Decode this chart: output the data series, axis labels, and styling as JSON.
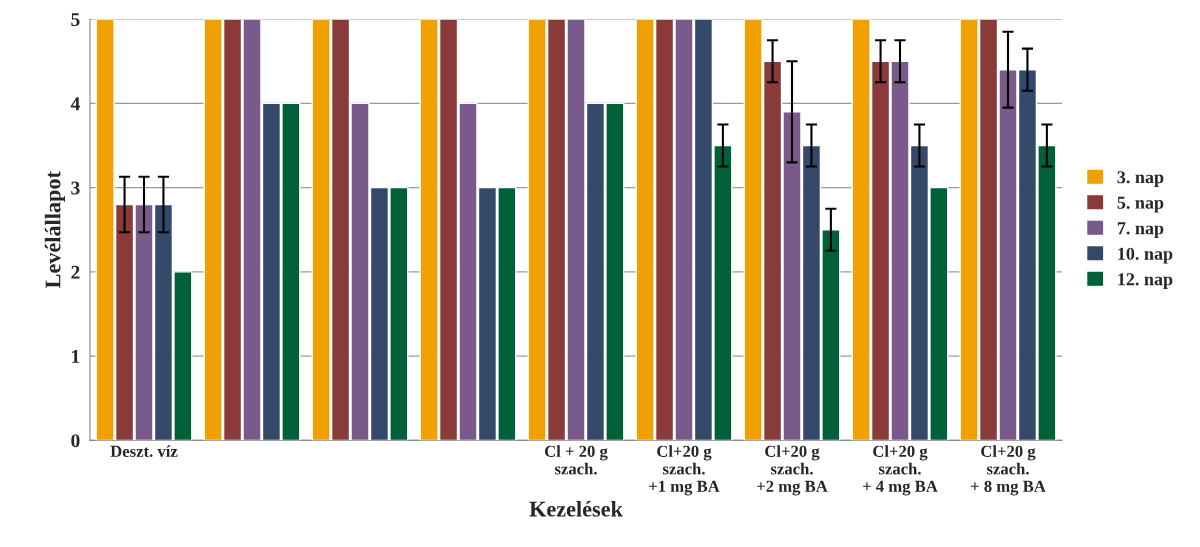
{
  "chart_data": {
    "type": "bar",
    "xlabel": "Kezelések",
    "ylabel": "Levélállapot",
    "categories": [
      "Deszt. víz",
      null,
      null,
      null,
      "Cl + 20 g\nszach.",
      "Cl+20 g\nszach.\n+1 mg BA",
      "Cl+20 g\nszach.\n+2 mg BA",
      "Cl+20 g\nszach.\n+ 4 mg BA",
      "Cl+20 g\nszach.\n+ 8 mg BA"
    ],
    "series": [
      {
        "name": "3. nap",
        "color": "#f0a000",
        "values": [
          5,
          5,
          5,
          5,
          5,
          5,
          5,
          5,
          5
        ]
      },
      {
        "name": "5. nap",
        "color": "#8b3a3a",
        "values": [
          2.8,
          5,
          5,
          5,
          5,
          5,
          4.5,
          4.5,
          5
        ],
        "errors": [
          0.33,
          null,
          null,
          null,
          null,
          null,
          0.25,
          0.25,
          null
        ]
      },
      {
        "name": "7. nap",
        "color": "#7a5a8a",
        "values": [
          2.8,
          5,
          4,
          4,
          5,
          5,
          3.9,
          4.5,
          4.4
        ],
        "errors": [
          0.33,
          null,
          null,
          null,
          null,
          null,
          0.6,
          0.25,
          0.45
        ]
      },
      {
        "name": "10. nap",
        "color": "#34496a",
        "values": [
          2.8,
          4,
          3,
          3,
          4,
          5,
          3.5,
          3.5,
          4.4
        ],
        "errors": [
          0.33,
          null,
          null,
          null,
          null,
          null,
          0.25,
          0.25,
          0.25
        ]
      },
      {
        "name": "12. nap",
        "color": "#00603a",
        "values": [
          2,
          4,
          3,
          3,
          4,
          3.5,
          2.5,
          3,
          3.5
        ],
        "errors": [
          null,
          null,
          null,
          null,
          null,
          0.25,
          0.25,
          null,
          0.25
        ]
      }
    ],
    "ylim": [
      0,
      5
    ],
    "yticks": [
      0,
      1,
      2,
      3,
      4,
      5
    ],
    "grid": "y",
    "legend": "right"
  }
}
